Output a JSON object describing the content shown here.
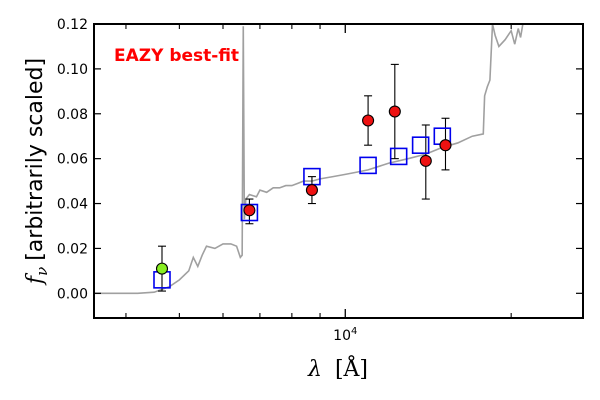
{
  "chart_data": {
    "type": "scatter",
    "xlabel": "λ [Å]",
    "ylabel": "f_ν [arbitrarily scaled]",
    "ylabel_symbol": "f",
    "ylabel_subscript": "ν",
    "ylabel_text": "[arbitrarily scaled]",
    "xlabel_symbol": "λ",
    "xlabel_unit": "[Å]",
    "xscale": "log",
    "xlim": [
      3500,
      27000
    ],
    "ylim": [
      -0.011,
      0.12
    ],
    "y_ticks": [
      0.0,
      0.02,
      0.04,
      0.06,
      0.08,
      0.1,
      0.12
    ],
    "y_tick_labels": [
      "0.00",
      "0.02",
      "0.04",
      "0.06",
      "0.08",
      "0.10",
      "0.12"
    ],
    "x_major_ticks": [
      10000
    ],
    "x_major_tick_label_base": "10",
    "x_major_tick_label_exp": "4",
    "x_minor_ticks": [
      4000,
      5000,
      6000,
      7000,
      8000,
      9000,
      20000
    ],
    "annotation": "EAZY best-fit",
    "annotation_color": "#ff0000",
    "colors": {
      "model": "#a0a0a0",
      "model_photometry": "#0000ee",
      "observed": "#ee1111",
      "observed_highlight": "#88ee22",
      "errorbar": "#000000"
    },
    "series": [
      {
        "type": "line",
        "points": [
          [
            3500,
            0.0
          ],
          [
            4200,
            0.0
          ],
          [
            4500,
            0.0005
          ],
          [
            4800,
            0.003
          ],
          [
            5000,
            0.006
          ],
          [
            5200,
            0.01
          ],
          [
            5300,
            0.016
          ],
          [
            5400,
            0.012
          ],
          [
            5500,
            0.017
          ],
          [
            5600,
            0.021
          ],
          [
            5800,
            0.02
          ],
          [
            6000,
            0.022
          ],
          [
            6200,
            0.022
          ],
          [
            6350,
            0.021
          ],
          [
            6450,
            0.016
          ],
          [
            6500,
            0.017
          ],
          [
            6530,
            0.119
          ],
          [
            6560,
            0.033
          ],
          [
            6600,
            0.042
          ],
          [
            6700,
            0.044
          ],
          [
            6900,
            0.043
          ],
          [
            7000,
            0.046
          ],
          [
            7200,
            0.045
          ],
          [
            7400,
            0.047
          ],
          [
            7600,
            0.047
          ],
          [
            7800,
            0.048
          ],
          [
            8000,
            0.048
          ],
          [
            8200,
            0.049
          ],
          [
            8400,
            0.05
          ],
          [
            8700,
            0.05
          ],
          [
            9000,
            0.051
          ],
          [
            9500,
            0.052
          ],
          [
            10000,
            0.053
          ],
          [
            10500,
            0.054
          ],
          [
            11000,
            0.055
          ],
          [
            12000,
            0.058
          ],
          [
            13000,
            0.06
          ],
          [
            14000,
            0.062
          ],
          [
            15000,
            0.065
          ],
          [
            16000,
            0.067
          ],
          [
            17000,
            0.07
          ],
          [
            17800,
            0.071
          ],
          [
            17900,
            0.088
          ],
          [
            18100,
            0.092
          ],
          [
            18300,
            0.095
          ],
          [
            18500,
            0.12
          ],
          [
            18700,
            0.115
          ],
          [
            19000,
            0.11
          ],
          [
            19500,
            0.113
          ],
          [
            20000,
            0.117
          ],
          [
            20300,
            0.111
          ],
          [
            20600,
            0.118
          ],
          [
            20800,
            0.114
          ],
          [
            21000,
            0.12
          ]
        ]
      },
      {
        "type": "scatter",
        "marker": "square",
        "points": [
          [
            4650,
            0.006
          ],
          [
            6700,
            0.036
          ],
          [
            8700,
            0.052
          ],
          [
            11000,
            0.057
          ],
          [
            12500,
            0.061
          ],
          [
            13700,
            0.066
          ],
          [
            15000,
            0.07
          ]
        ]
      },
      {
        "type": "scatter",
        "marker": "circle",
        "points": [
          {
            "x": 4650,
            "y": 0.011,
            "yerr_low": 0.01,
            "yerr_high": 0.01,
            "highlight": true
          },
          {
            "x": 6700,
            "y": 0.037,
            "yerr_low": 0.006,
            "yerr_high": 0.005
          },
          {
            "x": 8700,
            "y": 0.046,
            "yerr_low": 0.006,
            "yerr_high": 0.006
          },
          {
            "x": 11000,
            "y": 0.077,
            "yerr_low": 0.011,
            "yerr_high": 0.011
          },
          {
            "x": 12300,
            "y": 0.081,
            "yerr_low": 0.021,
            "yerr_high": 0.021
          },
          {
            "x": 14000,
            "y": 0.059,
            "yerr_low": 0.017,
            "yerr_high": 0.016
          },
          {
            "x": 15200,
            "y": 0.066,
            "yerr_low": 0.011,
            "yerr_high": 0.012
          }
        ]
      }
    ]
  }
}
